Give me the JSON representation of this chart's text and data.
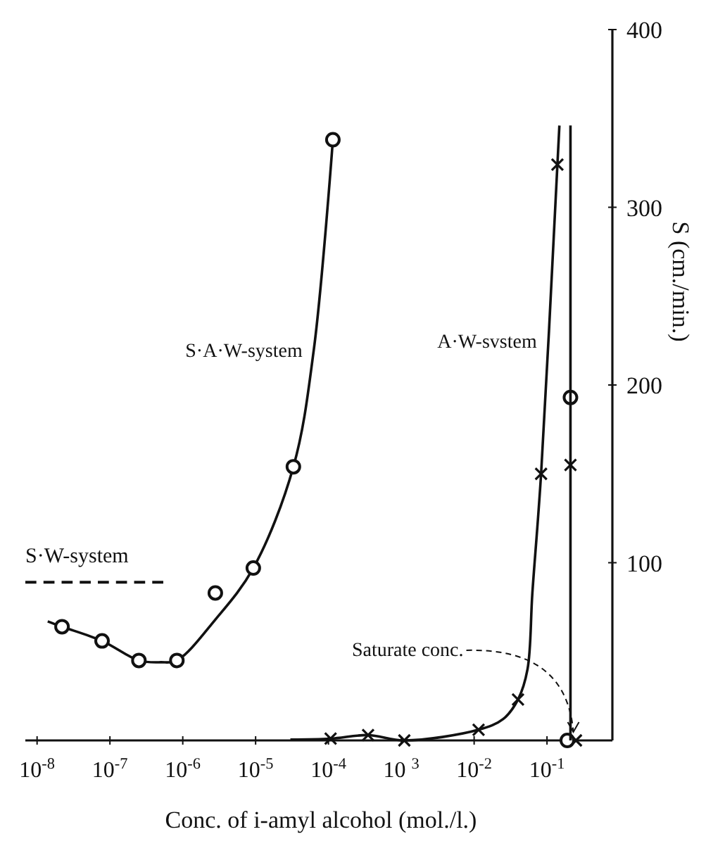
{
  "chart_data": {
    "type": "line",
    "xlabel": "Conc. of i-amyl alcohol (mol./l.)",
    "ylabel": "S (cm./min.)",
    "log": "x",
    "xlim": [
      6.9e-09,
      0.79
    ],
    "ylim": [
      0,
      400
    ],
    "xticks": [
      {
        "value": 1e-08,
        "label": "10$^{-8}$"
      },
      {
        "value": 1e-07,
        "label": "10$^{-7}$"
      },
      {
        "value": 1e-06,
        "label": "10$^{-6}$"
      },
      {
        "value": 1e-05,
        "label": "10$^{-5}$"
      },
      {
        "value": 0.0001,
        "label": "10$^{-4}$"
      },
      {
        "value": 0.001,
        "label": "10 $^{3}$"
      },
      {
        "value": 0.01,
        "label": "10$^{-2}$"
      },
      {
        "value": 0.1,
        "label": "10$^{-1}$"
      }
    ],
    "yticks": [
      100,
      200,
      300,
      400
    ],
    "grid": false,
    "series": [
      {
        "name": "S·A·W-system",
        "type": "line",
        "color": "#111111",
        "marker": "none",
        "line_style": "solid",
        "x": [
          1.4e-08,
          2.2e-08,
          7.8e-08,
          2.5e-07,
          5e-07,
          8.3e-07,
          2.8e-06,
          9.3e-06,
          3.3e-05,
          6.3e-05,
          0.000115
        ],
        "values": [
          67,
          64,
          56,
          45,
          44,
          45,
          68,
          97,
          154,
          220,
          338
        ]
      },
      {
        "type": "scatter",
        "color": "#111111",
        "marker": "circle",
        "x": [
          2.2e-08,
          7.8e-08,
          2.5e-07,
          8.3e-07,
          2.8e-06,
          9.3e-06,
          3.3e-05,
          0.000115,
          0.21,
          0.19
        ],
        "values": [
          64,
          56,
          45,
          45,
          83,
          97,
          154,
          338,
          193,
          0
        ]
      },
      {
        "name": "S·W-system",
        "type": "line",
        "color": "#111111",
        "marker": "none",
        "line_style": "dashed",
        "x": [
          6.9e-09,
          5.4e-07
        ],
        "values": [
          89,
          89
        ]
      },
      {
        "name": "A·W-svstem",
        "type": "line",
        "color": "#111111",
        "marker": "none",
        "line_style": "solid",
        "x": [
          3e-05,
          0.000107,
          0.00035,
          0.0011,
          0.0115,
          0.025,
          0.04,
          0.054,
          0.063,
          0.083,
          0.139,
          0.148
        ],
        "values": [
          0.5,
          1,
          3,
          0,
          6,
          12,
          23,
          40,
          83,
          150,
          324,
          346
        ]
      },
      {
        "type": "scatter",
        "color": "#111111",
        "marker": "cross",
        "x": [
          0.000107,
          0.00035,
          0.0011,
          0.0115,
          0.04,
          0.083,
          0.139,
          0.21,
          0.25
        ],
        "values": [
          1,
          3,
          0,
          6,
          23,
          150,
          324,
          155,
          0
        ]
      },
      {
        "type": "line",
        "color": "#111111",
        "marker": "none",
        "line_style": "solid",
        "x": [
          0.21,
          0.21
        ],
        "values": [
          0,
          346
        ]
      }
    ],
    "annotations": [
      {
        "text": "Saturate conc.",
        "x": 0.23,
        "y": 0
      }
    ]
  }
}
